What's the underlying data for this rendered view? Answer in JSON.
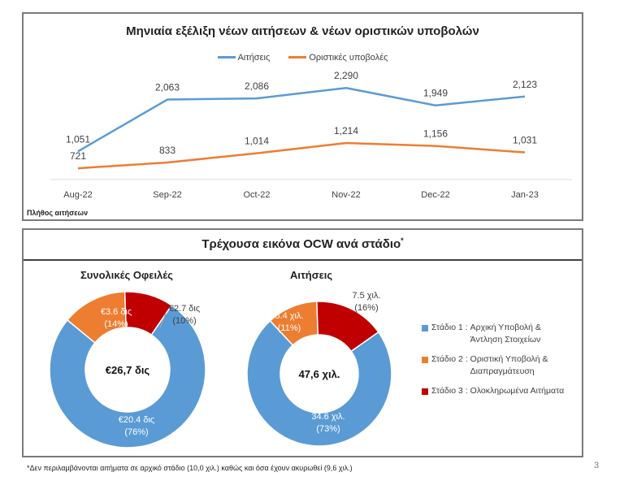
{
  "chart_data": [
    {
      "type": "line",
      "title": "Μηνιαία εξέλιξη νέων αιτήσεων & νέων οριστικών υποβολών",
      "xlabel": "",
      "ylabel": "Πλήθος αιτήσεων",
      "categories": [
        "Aug-22",
        "Sep-22",
        "Oct-22",
        "Nov-22",
        "Dec-22",
        "Jan-23"
      ],
      "series": [
        {
          "name": "Αιτήσεις",
          "color": "#5b9bd5",
          "values": [
            1051,
            2063,
            2086,
            2290,
            1949,
            2123
          ],
          "labels": [
            "1,051",
            "2,063",
            "2,086",
            "2,290",
            "1,949",
            "2,123"
          ]
        },
        {
          "name": "Οριστικές υποβολές",
          "color": "#ed7d31",
          "values": [
            721,
            833,
            1014,
            1214,
            1156,
            1031
          ],
          "labels": [
            "721",
            "833",
            "1,014",
            "1,214",
            "1,156",
            "1,031"
          ]
        }
      ],
      "ylim": [
        500,
        2500
      ],
      "grid": false,
      "legend": "top-center"
    },
    {
      "type": "pie",
      "variant": "donut",
      "title": "Συνολικές Οφειλές",
      "center_label": "€26,7 δις",
      "slices": [
        {
          "name": "Στάδιο 1",
          "value": 20.4,
          "percent": 76,
          "label": "€20.4 δις",
          "pct_label": "(76%)",
          "color": "#5b9bd5"
        },
        {
          "name": "Στάδιο 2",
          "value": 3.6,
          "percent": 14,
          "label": "€3.6 δις",
          "pct_label": "(14%)",
          "color": "#ed7d31"
        },
        {
          "name": "Στάδιο 3",
          "value": 2.7,
          "percent": 10,
          "label": "€2.7 δις",
          "pct_label": "(10%)",
          "color": "#c00000"
        }
      ]
    },
    {
      "type": "pie",
      "variant": "donut",
      "title": "Αιτήσεις",
      "center_label": "47,6 χιλ.",
      "slices": [
        {
          "name": "Στάδιο 1",
          "value": 34.6,
          "percent": 73,
          "label": "34.6 χιλ.",
          "pct_label": "(73%)",
          "color": "#5b9bd5"
        },
        {
          "name": "Στάδιο 2",
          "value": 5.4,
          "percent": 11,
          "label": "5.4 χιλ.",
          "pct_label": "(11%)",
          "color": "#ed7d31"
        },
        {
          "name": "Στάδιο 3",
          "value": 7.5,
          "percent": 16,
          "label": "7.5 χιλ.",
          "pct_label": "(16%)",
          "color": "#c00000"
        }
      ]
    }
  ],
  "ocw_section": {
    "title": "Τρέχουσα εικόνα OCW ανά στάδιο",
    "title_marker": "*",
    "legend": [
      {
        "stage": "Στάδιο 1 :",
        "desc": "Αρχική Υποβολή & Άντληση Στοιχείων",
        "color": "#5b9bd5"
      },
      {
        "stage": "Στάδιο 2 :",
        "desc": "Οριστική Υποβολή & Διαπραγμάτευση",
        "color": "#ed7d31"
      },
      {
        "stage": "Στάδιο 3 :",
        "desc": "Ολοκληρωμένα Αιτήματα",
        "color": "#c00000"
      }
    ]
  },
  "footnote": "*Δεν περιλαμβάνονται αιτήματα σε αρχικό στάδιο (10,0 χιλ.) καθώς και όσα έχουν ακυρωθεί (9,6 χιλ.)",
  "page_number": "3"
}
